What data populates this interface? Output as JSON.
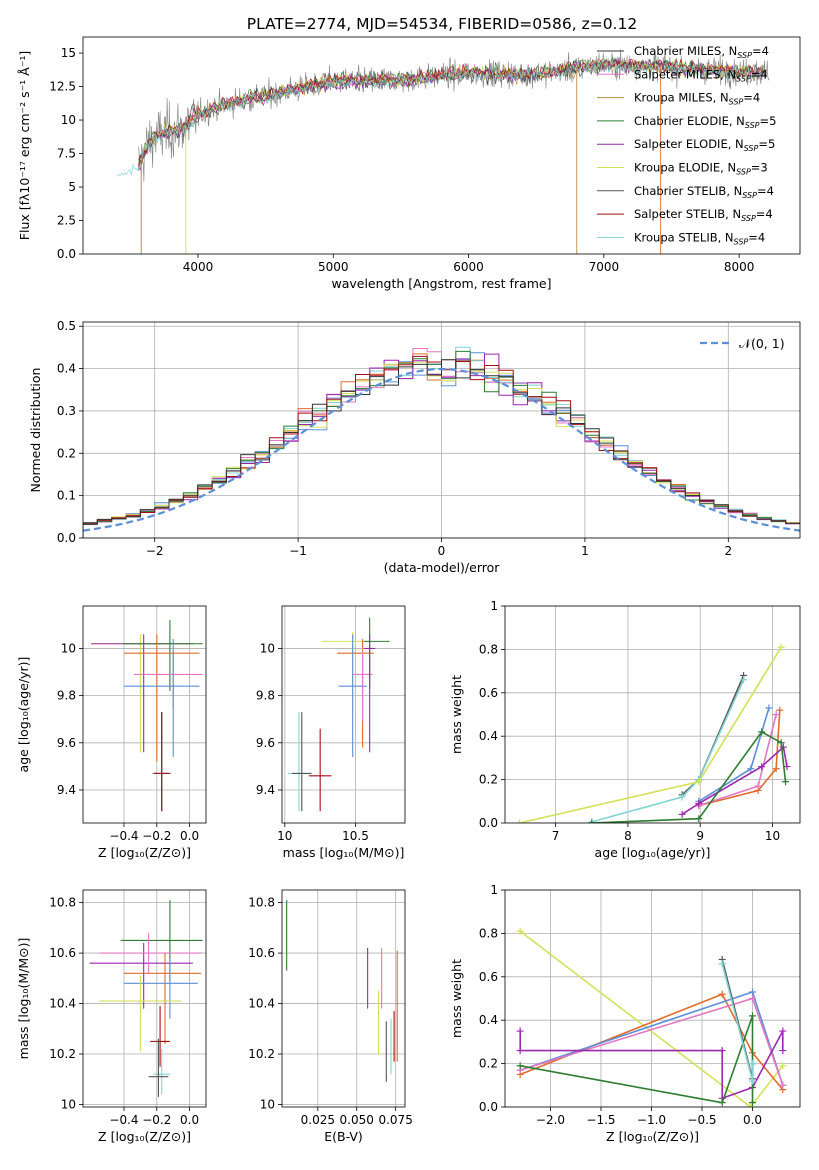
{
  "figure_title": "PLATE=2774, MJD=54534, FIBERID=0586, z=0.12",
  "model_colors": [
    "#333333",
    "#e377c2",
    "#c08a3e",
    "#2e7d32",
    "#9c27b0",
    "#d4e157",
    "#555555",
    "#a50f15",
    "#80d4d4"
  ],
  "chart_data": [
    {
      "id": "spectrum",
      "type": "line",
      "title": "PLATE=2774, MJD=54534, FIBERID=0586, z=0.12",
      "xlabel": "wavelength [Angstrom, rest frame]",
      "ylabel": "Flux [fλ10⁻¹⁷ erg cm⁻² s⁻¹ Å⁻¹]",
      "xlim": [
        3150,
        8450
      ],
      "ylim": [
        0,
        16.2
      ],
      "xticks": [
        4000,
        5000,
        6000,
        7000,
        8000
      ],
      "yticks": [
        0.0,
        2.5,
        5.0,
        7.5,
        10.0,
        12.5,
        15.0
      ],
      "grid": false,
      "legend_position": "upper-right",
      "observed_color": "#808080",
      "continuum": {
        "x": [
          3400,
          3550,
          3650,
          3750,
          3900,
          4000,
          4200,
          4500,
          5000,
          5500,
          6000,
          6500,
          7000,
          7400,
          8000,
          8200
        ],
        "y": [
          6.2,
          6.4,
          8.5,
          9.0,
          9.5,
          10.4,
          11.2,
          11.8,
          12.9,
          13.0,
          13.5,
          13.4,
          14.2,
          14.0,
          13.6,
          13.5
        ]
      },
      "legend": [
        {
          "label": "Chabrier MILES, N",
          "sub": "SSP",
          "suffix": "=4",
          "color": "#333333"
        },
        {
          "label": "Salpeter MILES, N",
          "sub": "SSP",
          "suffix": "=4",
          "color": "#e377c2"
        },
        {
          "label": "Kroupa MILES, N",
          "sub": "SSP",
          "suffix": "=4",
          "color": "#c08a3e"
        },
        {
          "label": "Chabrier ELODIE, N",
          "sub": "SSP",
          "suffix": "=5",
          "color": "#2e7d32"
        },
        {
          "label": "Salpeter ELODIE, N",
          "sub": "SSP",
          "suffix": "=5",
          "color": "#9c27b0"
        },
        {
          "label": "Kroupa ELODIE, N",
          "sub": "SSP",
          "suffix": "=3",
          "color": "#d4e157"
        },
        {
          "label": "Chabrier STELIB, N",
          "sub": "SSP",
          "suffix": "=4",
          "color": "#555555"
        },
        {
          "label": "Salpeter STELIB, N",
          "sub": "SSP",
          "suffix": "=4",
          "color": "#a50f15"
        },
        {
          "label": "Kroupa STELIB, N",
          "sub": "SSP",
          "suffix": "=4",
          "color": "#80d4d4"
        }
      ]
    },
    {
      "id": "residuals",
      "type": "step",
      "xlabel": "(data-model)/error",
      "ylabel": "Normed distribution",
      "xlim": [
        -2.5,
        2.5
      ],
      "ylim": [
        0,
        0.51
      ],
      "xticks": [
        -2,
        -1,
        0,
        1,
        2
      ],
      "yticks": [
        0.0,
        0.1,
        0.2,
        0.3,
        0.4,
        0.5
      ],
      "grid": true,
      "legend_position": "upper-right",
      "gaussian_label": "𝒩(0, 1)",
      "gaussian_color": "#5b8fd9",
      "bin_width": 0.1,
      "colors": [
        "#5b8fd9",
        "#e06c2a",
        "#e377c2",
        "#80d4d4",
        "#9c27b0",
        "#d4e157",
        "#2e7d32",
        "#a50f15",
        "#333333"
      ]
    },
    {
      "id": "age-vs-Z",
      "type": "errorbar",
      "xlabel": "Z [log₁₀(Z/Z⊙)]",
      "ylabel": "age  [log₁₀(age/yr)]",
      "xlim": [
        -0.65,
        0.1
      ],
      "ylim": [
        9.26,
        10.18
      ],
      "xticks": [
        -0.4,
        -0.2,
        0.0
      ],
      "xticklabels": [
        "−0.4",
        "−0.2",
        "0.0"
      ],
      "yticks": [
        9.4,
        9.6,
        9.8,
        10.0
      ],
      "grid": true,
      "points": [
        {
          "x": -0.3,
          "y": 10.02,
          "xerr": [
            0.3,
            0.3
          ],
          "yerr": [
            0.46,
            0.04
          ],
          "color": "#d4e157"
        },
        {
          "x": -0.28,
          "y": 10.02,
          "xerr": [
            0.32,
            0.3
          ],
          "yerr": [
            0.46,
            0.04
          ],
          "color": "#9c27b0"
        },
        {
          "x": -0.12,
          "y": 10.02,
          "xerr": [
            0.28,
            0.2
          ],
          "yerr": [
            0.2,
            0.1
          ],
          "color": "#2e7d32"
        },
        {
          "x": -0.2,
          "y": 9.98,
          "xerr": [
            0.2,
            0.26
          ],
          "yerr": [
            0.46,
            0.08
          ],
          "color": "#e06c2a"
        },
        {
          "x": -0.1,
          "y": 9.89,
          "xerr": [
            0.24,
            0.18
          ],
          "yerr": [
            0.14,
            0.1
          ],
          "color": "#e377c2"
        },
        {
          "x": -0.1,
          "y": 9.84,
          "xerr": [
            0.3,
            0.16
          ],
          "yerr": [
            0.3,
            0.2
          ],
          "color": "#5b8fd9"
        },
        {
          "x": -0.17,
          "y": 9.47,
          "xerr": [
            0.06,
            0.06
          ],
          "yerr": [
            0.16,
            0.26
          ],
          "color": "#80d4d4"
        },
        {
          "x": -0.17,
          "y": 9.47,
          "xerr": [
            0.05,
            0.05
          ],
          "yerr": [
            0.16,
            0.26
          ],
          "color": "#555555"
        },
        {
          "x": -0.17,
          "y": 9.47,
          "xerr": [
            0.05,
            0.05
          ],
          "yerr": [
            0.16,
            0.26
          ],
          "color": "#a50f15"
        }
      ]
    },
    {
      "id": "age-vs-mass",
      "type": "errorbar",
      "xlabel": "mass [log₁₀(M/M⊙)]",
      "ylabel": "",
      "xlim": [
        9.98,
        10.85
      ],
      "ylim": [
        9.26,
        10.18
      ],
      "xticks": [
        10.0,
        10.5
      ],
      "yticks": [
        9.4,
        9.6,
        9.8,
        10.0
      ],
      "grid": true,
      "points": [
        {
          "x": 10.48,
          "y": 10.03,
          "xerr": [
            0.22,
            0.12
          ],
          "yerr": [
            0.3,
            0.04
          ],
          "color": "#d4e157"
        },
        {
          "x": 10.6,
          "y": 10.03,
          "xerr": [
            0.04,
            0.14
          ],
          "yerr": [
            0.2,
            0.1
          ],
          "color": "#2e7d32"
        },
        {
          "x": 10.55,
          "y": 9.98,
          "xerr": [
            0.18,
            0.08
          ],
          "yerr": [
            0.4,
            0.06
          ],
          "color": "#e06c2a"
        },
        {
          "x": 10.55,
          "y": 9.89,
          "xerr": [
            0.07,
            0.07
          ],
          "yerr": [
            0.2,
            0.1
          ],
          "color": "#e377c2"
        },
        {
          "x": 10.48,
          "y": 9.84,
          "xerr": [
            0.1,
            0.1
          ],
          "yerr": [
            0.3,
            0.22
          ],
          "color": "#5b8fd9"
        },
        {
          "x": 10.6,
          "y": 10.0,
          "xerr": [
            0.04,
            0.04
          ],
          "yerr": [
            0.44,
            0.06
          ],
          "color": "#9c27b0"
        },
        {
          "x": 10.1,
          "y": 9.47,
          "xerr": [
            0.08,
            0.06
          ],
          "yerr": [
            0.16,
            0.26
          ],
          "color": "#80d4d4"
        },
        {
          "x": 10.12,
          "y": 9.47,
          "xerr": [
            0.07,
            0.07
          ],
          "yerr": [
            0.16,
            0.26
          ],
          "color": "#555555"
        },
        {
          "x": 10.25,
          "y": 9.46,
          "xerr": [
            0.08,
            0.08
          ],
          "yerr": [
            0.15,
            0.2
          ],
          "color": "#a50f15"
        }
      ]
    },
    {
      "id": "weight-vs-age",
      "type": "line",
      "xlabel": "age  [log₁₀(age/yr)]",
      "ylabel": "mass weight",
      "xlim": [
        6.3,
        10.38
      ],
      "ylim": [
        0,
        1.0
      ],
      "xticks": [
        7,
        8,
        9,
        10
      ],
      "yticks": [
        0.0,
        0.2,
        0.4,
        0.6,
        0.8,
        1.0
      ],
      "grid": true,
      "series": [
        {
          "color": "#555555",
          "x": [
            8.75,
            8.98,
            9.6
          ],
          "y": [
            0.13,
            0.2,
            0.68
          ]
        },
        {
          "color": "#80d4d4",
          "x": [
            7.5,
            8.75,
            8.98,
            9.6
          ],
          "y": [
            0.005,
            0.12,
            0.2,
            0.66
          ]
        },
        {
          "color": "#d4e157",
          "x": [
            6.5,
            8.98,
            10.12
          ],
          "y": [
            0.0,
            0.19,
            0.81
          ]
        },
        {
          "color": "#e06c2a",
          "x": [
            8.98,
            9.8,
            10.05,
            10.1
          ],
          "y": [
            0.08,
            0.15,
            0.25,
            0.52
          ]
        },
        {
          "color": "#5b8fd9",
          "x": [
            8.98,
            9.7,
            9.95
          ],
          "y": [
            0.1,
            0.25,
            0.53
          ]
        },
        {
          "color": "#e377c2",
          "x": [
            8.98,
            9.8,
            10.05
          ],
          "y": [
            0.08,
            0.17,
            0.5
          ]
        },
        {
          "color": "#9c27b0",
          "x": [
            8.75,
            8.98,
            9.85,
            10.15,
            10.2
          ],
          "y": [
            0.04,
            0.09,
            0.26,
            0.35,
            0.26
          ]
        },
        {
          "color": "#2e7d32",
          "x": [
            7.5,
            8.98,
            9.85,
            10.12,
            10.18
          ],
          "y": [
            0.0,
            0.02,
            0.42,
            0.37,
            0.19
          ]
        }
      ]
    },
    {
      "id": "mass-vs-Z",
      "type": "errorbar",
      "xlabel": "Z [log₁₀(Z/Z⊙)]",
      "ylabel": "mass [log₁₀(M/M⊙)]",
      "xlim": [
        -0.65,
        0.1
      ],
      "ylim": [
        9.99,
        10.85
      ],
      "xticks": [
        -0.4,
        -0.2,
        0.0
      ],
      "xticklabels": [
        "−0.4",
        "−0.2",
        "0.0"
      ],
      "yticks": [
        10.0,
        10.2,
        10.4,
        10.6,
        10.8
      ],
      "grid": true,
      "points": [
        {
          "x": -0.12,
          "y": 10.65,
          "xerr": [
            0.3,
            0.2
          ],
          "yerr": [
            0.16,
            0.16
          ],
          "color": "#2e7d32"
        },
        {
          "x": -0.28,
          "y": 10.56,
          "xerr": [
            0.33,
            0.3
          ],
          "yerr": [
            0.18,
            0.08
          ],
          "color": "#9c27b0"
        },
        {
          "x": -0.25,
          "y": 10.6,
          "xerr": [
            0.3,
            0.32
          ],
          "yerr": [
            0.08,
            0.08
          ],
          "color": "#e377c2"
        },
        {
          "x": -0.15,
          "y": 10.52,
          "xerr": [
            0.25,
            0.22
          ],
          "yerr": [
            0.28,
            0.08
          ],
          "color": "#e06c2a"
        },
        {
          "x": -0.12,
          "y": 10.48,
          "xerr": [
            0.28,
            0.17
          ],
          "yerr": [
            0.14,
            0.1
          ],
          "color": "#5b8fd9"
        },
        {
          "x": -0.3,
          "y": 10.41,
          "xerr": [
            0.25,
            0.25
          ],
          "yerr": [
            0.2,
            0.1
          ],
          "color": "#d4e157"
        },
        {
          "x": -0.18,
          "y": 10.25,
          "xerr": [
            0.06,
            0.06
          ],
          "yerr": [
            0.1,
            0.14
          ],
          "color": "#a50f15"
        },
        {
          "x": -0.17,
          "y": 10.12,
          "xerr": [
            0.05,
            0.05
          ],
          "yerr": [
            0.08,
            0.1
          ],
          "color": "#80d4d4"
        },
        {
          "x": -0.19,
          "y": 10.11,
          "xerr": [
            0.06,
            0.06
          ],
          "yerr": [
            0.08,
            0.15
          ],
          "color": "#555555"
        }
      ]
    },
    {
      "id": "mass-vs-EBV",
      "type": "errorbar",
      "xlabel": "E(B-V)",
      "ylabel": "",
      "xlim": [
        0.002,
        0.081
      ],
      "ylim": [
        9.99,
        10.85
      ],
      "xticks": [
        0.025,
        0.05,
        0.075
      ],
      "xticklabels": [
        "0.025",
        "0.050",
        "0.075"
      ],
      "yticks": [
        10.0,
        10.2,
        10.4,
        10.6,
        10.8
      ],
      "grid": true,
      "points": [
        {
          "x": 0.005,
          "y": 10.67,
          "xerr": [
            0,
            0
          ],
          "yerr": [
            0.14,
            0.14
          ],
          "color": "#2e7d32"
        },
        {
          "x": 0.057,
          "y": 10.5,
          "xerr": [
            0,
            0
          ],
          "yerr": [
            0.12,
            0.12
          ],
          "color": "#9c27b0"
        },
        {
          "x": 0.066,
          "y": 10.5,
          "xerr": [
            0,
            0
          ],
          "yerr": [
            0.12,
            0.12
          ],
          "color": "#e377c2"
        },
        {
          "x": 0.064,
          "y": 10.33,
          "xerr": [
            0,
            0
          ],
          "yerr": [
            0.13,
            0.12
          ],
          "color": "#d4e157"
        },
        {
          "x": 0.069,
          "y": 10.19,
          "xerr": [
            0,
            0
          ],
          "yerr": [
            0.1,
            0.14
          ],
          "color": "#555555"
        },
        {
          "x": 0.072,
          "y": 10.22,
          "xerr": [
            0,
            0
          ],
          "yerr": [
            0.1,
            0.12
          ],
          "color": "#80d4d4"
        },
        {
          "x": 0.074,
          "y": 10.27,
          "xerr": [
            0,
            0
          ],
          "yerr": [
            0.1,
            0.1
          ],
          "color": "#a50f15"
        },
        {
          "x": 0.076,
          "y": 10.39,
          "xerr": [
            0,
            0
          ],
          "yerr": [
            0.22,
            0.22
          ],
          "color": "#e06c2a"
        }
      ]
    },
    {
      "id": "weight-vs-Z",
      "type": "line",
      "xlabel": "Z [log₁₀(Z/Z⊙)]",
      "ylabel": "mass weight",
      "xlim": [
        -2.45,
        0.47
      ],
      "ylim": [
        0,
        1.0
      ],
      "xticks": [
        -2.0,
        -1.5,
        -1.0,
        -0.5,
        0.0
      ],
      "xticklabels": [
        "−2.0",
        "−1.5",
        "−1.0",
        "−0.5",
        "0.0"
      ],
      "yticks": [
        0.0,
        0.2,
        0.4,
        0.6,
        0.8,
        1.0
      ],
      "grid": true,
      "series": [
        {
          "color": "#d4e157",
          "x": [
            -2.3,
            -0.02,
            0.3
          ],
          "y": [
            0.81,
            0.0,
            0.19
          ]
        },
        {
          "color": "#e06c2a",
          "x": [
            -2.3,
            -0.3,
            0.0,
            0.3
          ],
          "y": [
            0.15,
            0.52,
            0.25,
            0.08
          ]
        },
        {
          "color": "#5b8fd9",
          "x": [
            -2.3,
            0.0,
            0.3
          ],
          "y": [
            0.17,
            0.53,
            0.1
          ]
        },
        {
          "color": "#e377c2",
          "x": [
            -2.3,
            0.0,
            0.3
          ],
          "y": [
            0.17,
            0.5,
            0.1
          ]
        },
        {
          "color": "#9c27b0",
          "x": [
            -2.3,
            -2.3,
            -0.3,
            -0.3,
            0.0,
            0.3,
            0.3
          ],
          "y": [
            0.35,
            0.26,
            0.26,
            0.04,
            0.09,
            0.35,
            0.26
          ]
        },
        {
          "color": "#2e7d32",
          "x": [
            -2.3,
            -0.3,
            0.0,
            0.0
          ],
          "y": [
            0.19,
            0.02,
            0.42,
            0.02
          ]
        },
        {
          "color": "#555555",
          "x": [
            -0.3,
            0.0,
            0.0
          ],
          "y": [
            0.68,
            0.13,
            0.2
          ]
        },
        {
          "color": "#80d4d4",
          "x": [
            -0.3,
            0.0,
            0.0
          ],
          "y": [
            0.66,
            0.12,
            0.2
          ]
        }
      ]
    }
  ]
}
